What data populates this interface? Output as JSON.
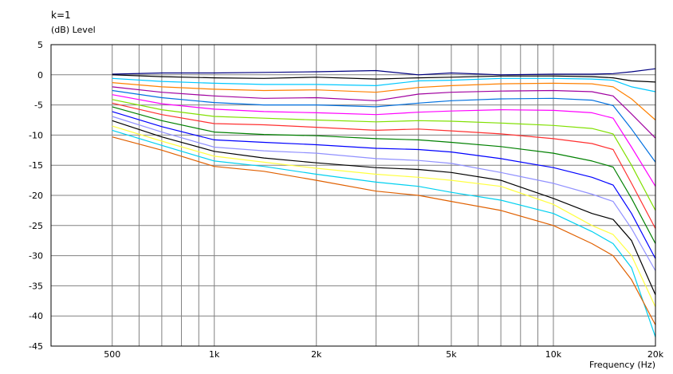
{
  "chart_data": {
    "type": "line",
    "title": "k=1",
    "ylabel": "(dB)  Level",
    "xlabel": "Frequency  (Hz)",
    "x_scale": "log",
    "xlim": [
      330,
      20000
    ],
    "ylim": [
      -45,
      5
    ],
    "grid": true,
    "y_ticks": [
      5,
      0,
      -5,
      -10,
      -15,
      -20,
      -25,
      -30,
      -35,
      -40,
      -45
    ],
    "x_tick_labels": [
      {
        "value": 500,
        "label": "500"
      },
      {
        "value": 1000,
        "label": "1k"
      },
      {
        "value": 2000,
        "label": "2k"
      },
      {
        "value": 5000,
        "label": "5k"
      },
      {
        "value": 10000,
        "label": "10k"
      },
      {
        "value": 20000,
        "label": "20k"
      }
    ],
    "x_grid": [
      500,
      600,
      700,
      800,
      900,
      1000,
      2000,
      3000,
      4000,
      5000,
      6000,
      7000,
      8000,
      9000,
      10000,
      20000
    ],
    "x": [
      500,
      700,
      1000,
      1400,
      2000,
      3000,
      4000,
      5000,
      7000,
      10000,
      13000,
      15000,
      17000,
      20000
    ],
    "series": [
      {
        "color": "#000080",
        "values": [
          0.1,
          0.3,
          0.3,
          0.4,
          0.5,
          0.7,
          0.0,
          0.3,
          0.0,
          0.1,
          0.1,
          0.2,
          0.5,
          1.0
        ]
      },
      {
        "color": "#000000",
        "values": [
          0.0,
          -0.3,
          -0.5,
          -0.6,
          -0.4,
          -0.7,
          -0.5,
          -0.4,
          -0.2,
          -0.2,
          -0.3,
          -0.5,
          -1.0,
          -1.2
        ]
      },
      {
        "color": "#00c8ff",
        "values": [
          -0.6,
          -1.1,
          -1.4,
          -1.6,
          -1.6,
          -1.8,
          -1.0,
          -0.9,
          -0.6,
          -0.6,
          -0.7,
          -0.9,
          -2.0,
          -2.8
        ]
      },
      {
        "color": "#ff8000",
        "values": [
          -1.3,
          -2.0,
          -2.4,
          -2.6,
          -2.5,
          -2.9,
          -2.1,
          -1.8,
          -1.5,
          -1.4,
          -1.5,
          -2.0,
          -4.0,
          -7.5
        ]
      },
      {
        "color": "#a000a0",
        "values": [
          -2.0,
          -2.9,
          -3.5,
          -3.9,
          -3.8,
          -4.3,
          -3.2,
          -2.9,
          -2.7,
          -2.6,
          -2.8,
          -3.5,
          -6.5,
          -10.5
        ]
      },
      {
        "color": "#0070e0",
        "values": [
          -2.6,
          -3.8,
          -4.6,
          -5.0,
          -5.0,
          -5.3,
          -4.7,
          -4.3,
          -4.0,
          -3.9,
          -4.2,
          -5.1,
          -9.0,
          -14.5
        ]
      },
      {
        "color": "#ff00ff",
        "values": [
          -3.3,
          -4.8,
          -5.7,
          -6.1,
          -6.3,
          -6.6,
          -6.2,
          -6.0,
          -5.8,
          -5.9,
          -6.3,
          -7.2,
          -12.0,
          -18.5
        ]
      },
      {
        "color": "#80e000",
        "values": [
          -4.1,
          -5.8,
          -6.9,
          -7.2,
          -7.5,
          -7.8,
          -7.6,
          -7.7,
          -8.0,
          -8.4,
          -8.9,
          -9.8,
          -15.0,
          -22.5
        ]
      },
      {
        "color": "#ff3030",
        "values": [
          -4.7,
          -6.6,
          -8.1,
          -8.3,
          -8.7,
          -9.2,
          -9.0,
          -9.3,
          -9.8,
          -10.6,
          -11.4,
          -12.4,
          -18.0,
          -25.5
        ]
      },
      {
        "color": "#008000",
        "values": [
          -5.3,
          -7.6,
          -9.5,
          -9.9,
          -10.1,
          -10.6,
          -10.8,
          -11.2,
          -11.9,
          -13.0,
          -14.3,
          -15.3,
          -20.5,
          -28.0
        ]
      },
      {
        "color": "#0000ff",
        "values": [
          -6.1,
          -8.6,
          -10.8,
          -11.2,
          -11.6,
          -12.2,
          -12.4,
          -12.8,
          -13.9,
          -15.4,
          -17.0,
          -18.3,
          -23.0,
          -30.5
        ]
      },
      {
        "color": "#9090ff",
        "values": [
          -6.9,
          -9.5,
          -12.0,
          -12.6,
          -13.0,
          -13.9,
          -14.2,
          -14.7,
          -16.2,
          -18.0,
          -19.8,
          -21.0,
          -25.5,
          -32.5
        ]
      },
      {
        "color": "#000000",
        "values": [
          -7.6,
          -10.3,
          -12.7,
          -13.8,
          -14.6,
          -15.4,
          -15.7,
          -16.2,
          -17.5,
          -20.5,
          -23.0,
          -24.0,
          -27.5,
          -36.5
        ]
      },
      {
        "color": "#ffff40",
        "values": [
          -8.5,
          -11.0,
          -13.5,
          -14.5,
          -15.5,
          -16.5,
          -17.0,
          -17.5,
          -18.5,
          -21.5,
          -25.0,
          -26.5,
          -30.0,
          -38.5
        ]
      },
      {
        "color": "#00d0f0",
        "values": [
          -9.2,
          -11.7,
          -14.3,
          -15.2,
          -16.5,
          -17.8,
          -18.5,
          -19.5,
          -20.8,
          -23.0,
          -26.0,
          -28.0,
          -32.0,
          -43.5
        ]
      },
      {
        "color": "#e06000",
        "values": [
          -10.3,
          -12.5,
          -15.2,
          -16.0,
          -17.5,
          -19.3,
          -20.0,
          -21.0,
          -22.5,
          -25.0,
          -28.0,
          -30.0,
          -34.0,
          -41.5
        ]
      }
    ]
  }
}
